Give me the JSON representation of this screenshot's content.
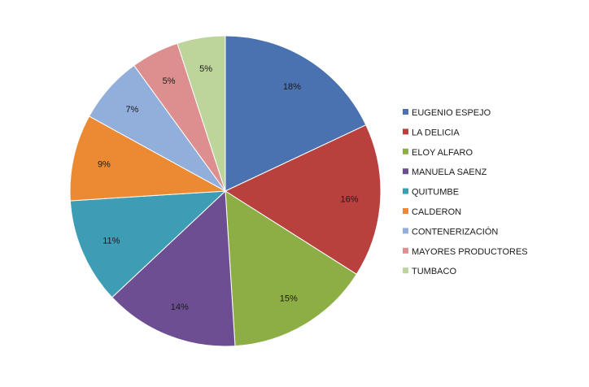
{
  "chart_data": {
    "type": "pie",
    "title": "",
    "legend_position": "right",
    "start_angle_deg": 0,
    "direction": "clockwise",
    "slices": [
      {
        "label": "EUGENIO ESPEJO",
        "value": 18,
        "display": "18%",
        "color": "#4a72b0"
      },
      {
        "label": "LA DELICIA",
        "value": 16,
        "display": "16%",
        "color": "#b8413e"
      },
      {
        "label": "ELOY ALFARO",
        "value": 15,
        "display": "15%",
        "color": "#8dae45"
      },
      {
        "label": "MANUELA SAENZ",
        "value": 14,
        "display": "14%",
        "color": "#6d4e93"
      },
      {
        "label": "QUITUMBE",
        "value": 11,
        "display": "11%",
        "color": "#3c9db4"
      },
      {
        "label": "CALDERON",
        "value": 9,
        "display": "9%",
        "color": "#ec8a34"
      },
      {
        "label": "CONTENERIZACIÓN",
        "value": 7,
        "display": "7%",
        "color": "#92aedb"
      },
      {
        "label": "MAYORES PRODUCTORES",
        "value": 5,
        "display": "5%",
        "color": "#dc8f8e"
      },
      {
        "label": "TUMBACO",
        "value": 5,
        "display": "5%",
        "color": "#bdd49a"
      }
    ]
  }
}
